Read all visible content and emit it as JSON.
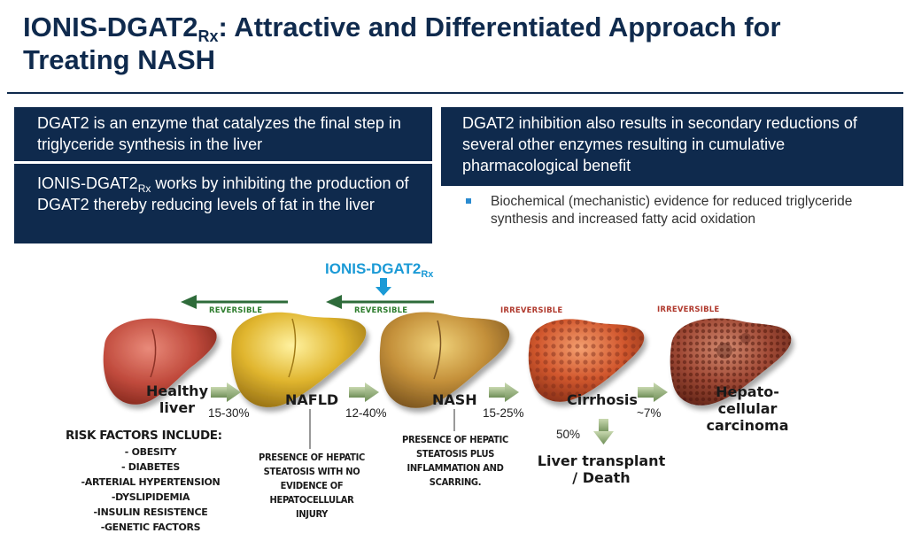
{
  "title": {
    "line1_main": "IONIS-DGAT2",
    "line1_sub": "Rx",
    "line1_rest": ": Attractive and Differentiated Approach for",
    "line2": "Treating NASH"
  },
  "box1": {
    "text": "DGAT2 is an enzyme that catalyzes the final step in triglyceride synthesis in the liver"
  },
  "box2": {
    "pre": "IONIS-DGAT2",
    "sub": "Rx",
    "rest": " works by inhibiting the production of DGAT2 thereby reducing levels of fat in the liver"
  },
  "box3": {
    "text": "DGAT2 inhibition also results in secondary reductions of several other enzymes resulting in cumulative pharmacological benefit"
  },
  "bullet": {
    "text": "Biochemical (mechanistic) evidence for reduced triglyceride synthesis and increased fatty acid oxidation"
  },
  "drug_label": {
    "main": "IONIS-DGAT2",
    "sub": "Rx"
  },
  "arrows": {
    "rev1": "REVERSIBLE",
    "rev2": "REVERSIBLE",
    "irr1": "IRREVERSIBLE",
    "irr2": "IRREVERSIBLE"
  },
  "stages": {
    "healthy_line1": "Healthy",
    "healthy_line2": "liver",
    "nafld": "NAFLD",
    "nash": "NASH",
    "cirrhosis": "Cirrhosis",
    "hcc_line1": "Hepato-",
    "hcc_line2": "cellular",
    "hcc_line3": "carcinoma"
  },
  "percents": {
    "p1": "15-30%",
    "p2": "12-40%",
    "p3": "15-25%",
    "p4": "~7%",
    "p5": "50%"
  },
  "transplant": {
    "line1": "Liver transplant",
    "line2": "/ Death"
  },
  "nafld_note": [
    "PRESENCE OF HEPATIC",
    "STEATOSIS WITH NO",
    "EVIDENCE OF",
    "HEPATOCELLULAR",
    "INJURY"
  ],
  "nash_note": [
    "PRESENCE OF HEPATIC",
    "STEATOSIS PLUS",
    "INFLAMMATION AND",
    "SCARRING."
  ],
  "risk": {
    "heading": "RISK FACTORS INCLUDE:",
    "items": [
      "- OBESITY",
      "- DIABETES",
      "-ARTERIAL HYPERTENSION",
      "-DYSLIPIDEMIA",
      "-INSULIN RESISTENCE",
      "-GENETIC FACTORS"
    ]
  },
  "colors": {
    "navy": "#0f2a4d",
    "accent_blue": "#1b9ad6",
    "reversible_green": "#2e7d2e",
    "irreversible_red": "#b03a2e"
  }
}
